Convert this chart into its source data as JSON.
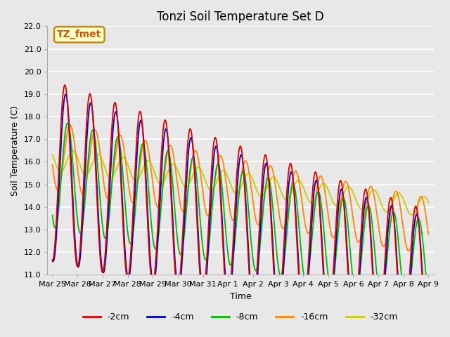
{
  "title": "Tonzi Soil Temperature Set D",
  "xlabel": "Time",
  "ylabel": "Soil Temperature (C)",
  "ylim": [
    11.0,
    22.0
  ],
  "yticks": [
    11.0,
    12.0,
    13.0,
    14.0,
    15.0,
    16.0,
    17.0,
    18.0,
    19.0,
    20.0,
    21.0,
    22.0
  ],
  "series_colors": [
    "#dd0000",
    "#0000cc",
    "#00bb00",
    "#ff8800",
    "#cccc00"
  ],
  "series_labels": [
    "-2cm",
    "-4cm",
    "-8cm",
    "-16cm",
    "-32cm"
  ],
  "annotation_text": "TZ_fmet",
  "annotation_bg": "#ffffcc",
  "annotation_border": "#cc8800",
  "xtick_labels": [
    "Mar 25",
    "Mar 26",
    "Mar 27",
    "Mar 28",
    "Mar 29",
    "Mar 30",
    "Mar 31",
    "Apr 1",
    "Apr 2",
    "Apr 3",
    "Apr 4",
    "Apr 5",
    "Apr 6",
    "Apr 7",
    "Apr 8",
    "Apr 9"
  ],
  "background_color": "#e8e8e8",
  "grid_color": "#ffffff",
  "title_fontsize": 12,
  "axis_fontsize": 9,
  "tick_fontsize": 8,
  "legend_fontsize": 9
}
